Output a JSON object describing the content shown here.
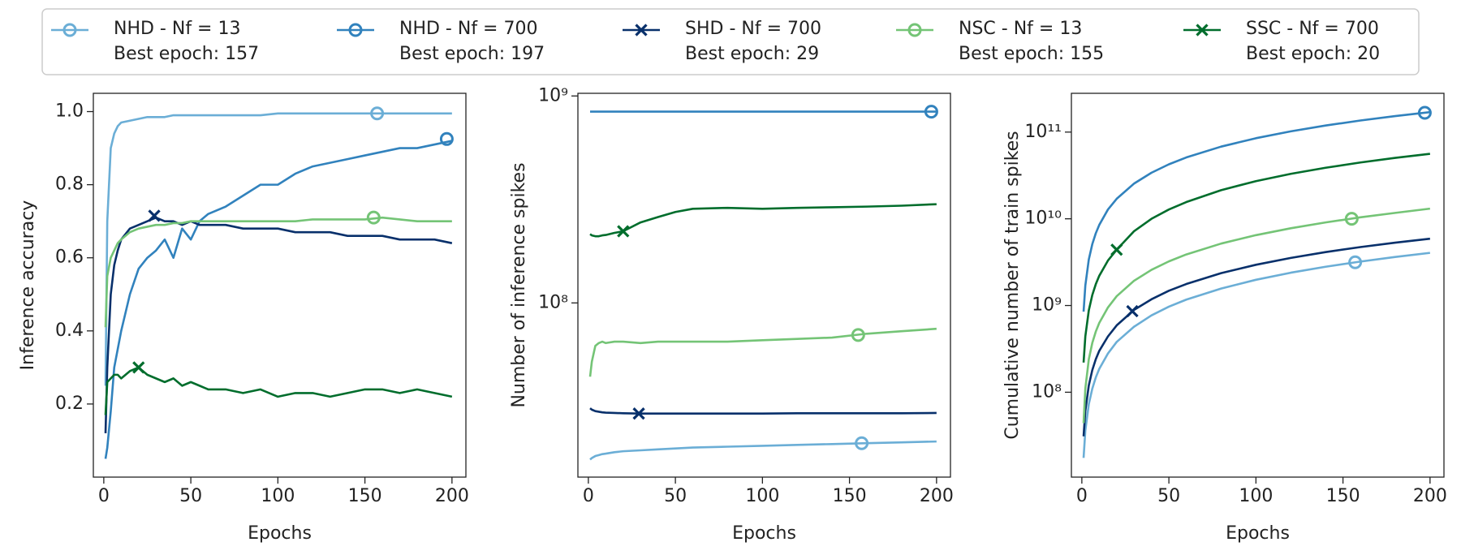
{
  "legend": [
    {
      "name": "NHD - Nf = 13",
      "note": "Best epoch: 157",
      "color": "#6baed6",
      "marker": "o"
    },
    {
      "name": "NHD - Nf = 700",
      "note": "Best epoch: 197",
      "color": "#3182bd",
      "marker": "o"
    },
    {
      "name": "SHD - Nf = 700",
      "note": "Best epoch: 29",
      "color": "#08306b",
      "marker": "x"
    },
    {
      "name": "NSC - Nf = 13",
      "note": "Best epoch: 155",
      "color": "#74c476",
      "marker": "o"
    },
    {
      "name": "SSC - Nf = 700",
      "note": "Best epoch: 20",
      "color": "#006d2c",
      "marker": "x"
    }
  ],
  "chart_data": [
    {
      "type": "line",
      "xlabel": "Epochs",
      "ylabel": "Inference accuracy",
      "log_y": false,
      "xlim": [
        -6,
        208
      ],
      "xticks": [
        0,
        50,
        100,
        150,
        200
      ],
      "ylim": [
        0.0,
        1.05
      ],
      "yticks": [
        0.2,
        0.4,
        0.6,
        0.8,
        {
          "value": 1.0,
          "label": "1.0"
        }
      ],
      "x": [
        1,
        2,
        4,
        6,
        8,
        10,
        15,
        20,
        25,
        30,
        35,
        40,
        45,
        50,
        55,
        60,
        70,
        80,
        90,
        100,
        110,
        120,
        130,
        140,
        150,
        160,
        170,
        180,
        190,
        200
      ],
      "series": [
        {
          "color": "#6baed6",
          "marker": "o",
          "best_epoch": 157,
          "best_value": 0.995,
          "values": [
            0.25,
            0.7,
            0.9,
            0.94,
            0.96,
            0.97,
            0.975,
            0.98,
            0.985,
            0.985,
            0.985,
            0.99,
            0.99,
            0.99,
            0.99,
            0.99,
            0.99,
            0.99,
            0.99,
            0.995,
            0.995,
            0.995,
            0.995,
            0.995,
            0.995,
            0.995,
            0.995,
            0.995,
            0.995,
            0.995
          ]
        },
        {
          "color": "#3182bd",
          "marker": "o",
          "best_epoch": 197,
          "best_value": 0.925,
          "values": [
            0.05,
            0.08,
            0.18,
            0.3,
            0.35,
            0.4,
            0.5,
            0.57,
            0.6,
            0.62,
            0.65,
            0.6,
            0.68,
            0.65,
            0.7,
            0.72,
            0.74,
            0.77,
            0.8,
            0.8,
            0.83,
            0.85,
            0.86,
            0.87,
            0.88,
            0.89,
            0.9,
            0.9,
            0.91,
            0.92
          ]
        },
        {
          "color": "#08306b",
          "marker": "x",
          "best_epoch": 29,
          "best_value": 0.715,
          "values": [
            0.12,
            0.3,
            0.5,
            0.58,
            0.62,
            0.65,
            0.68,
            0.69,
            0.7,
            0.71,
            0.7,
            0.7,
            0.69,
            0.7,
            0.69,
            0.69,
            0.69,
            0.68,
            0.68,
            0.68,
            0.67,
            0.67,
            0.67,
            0.66,
            0.66,
            0.66,
            0.65,
            0.65,
            0.65,
            0.64
          ]
        },
        {
          "color": "#74c476",
          "marker": "o",
          "best_epoch": 155,
          "best_value": 0.71,
          "values": [
            0.41,
            0.55,
            0.6,
            0.62,
            0.64,
            0.65,
            0.67,
            0.68,
            0.685,
            0.69,
            0.69,
            0.695,
            0.695,
            0.7,
            0.7,
            0.7,
            0.7,
            0.7,
            0.7,
            0.7,
            0.7,
            0.705,
            0.705,
            0.705,
            0.705,
            0.71,
            0.705,
            0.7,
            0.7,
            0.7
          ]
        },
        {
          "color": "#006d2c",
          "marker": "x",
          "best_epoch": 20,
          "best_value": 0.3,
          "values": [
            0.17,
            0.26,
            0.27,
            0.28,
            0.28,
            0.27,
            0.29,
            0.3,
            0.28,
            0.27,
            0.26,
            0.27,
            0.25,
            0.26,
            0.25,
            0.24,
            0.24,
            0.23,
            0.24,
            0.22,
            0.23,
            0.23,
            0.22,
            0.23,
            0.24,
            0.24,
            0.23,
            0.24,
            0.23,
            0.22
          ]
        }
      ]
    },
    {
      "type": "line",
      "xlabel": "Epochs",
      "ylabel": "Number of inference spikes",
      "log_y": true,
      "xlim": [
        -6,
        208
      ],
      "xticks": [
        0,
        50,
        100,
        150,
        200
      ],
      "ylim": [
        14400000,
        1030000000
      ],
      "yticks": [
        {
          "value": 100000000,
          "label": "10⁸"
        },
        {
          "value": 1000000000,
          "label": "10⁹"
        }
      ],
      "x": [
        1,
        2,
        4,
        6,
        8,
        10,
        15,
        20,
        30,
        40,
        50,
        60,
        80,
        100,
        120,
        140,
        160,
        180,
        200
      ],
      "series": [
        {
          "color": "#6baed6",
          "marker": "o",
          "best_epoch": 157,
          "best_value": 21000000.0,
          "values": [
            17500000.0,
            17800000.0,
            18200000.0,
            18400000.0,
            18600000.0,
            18700000.0,
            19000000.0,
            19200000.0,
            19400000.0,
            19600000.0,
            19800000.0,
            20000000.0,
            20200000.0,
            20400000.0,
            20600000.0,
            20800000.0,
            21000000.0,
            21200000.0,
            21400000.0
          ]
        },
        {
          "color": "#3182bd",
          "marker": "o",
          "best_epoch": 197,
          "best_value": 840000000.0,
          "values": [
            840000000.0,
            840000000.0,
            840000000.0,
            840000000.0,
            840000000.0,
            840000000.0,
            840000000.0,
            840000000.0,
            840000000.0,
            840000000.0,
            840000000.0,
            840000000.0,
            840000000.0,
            840000000.0,
            840000000.0,
            840000000.0,
            840000000.0,
            840000000.0,
            840000000.0
          ]
        },
        {
          "color": "#08306b",
          "marker": "x",
          "best_epoch": 29,
          "best_value": 29200000.0,
          "values": [
            31000000.0,
            30500000.0,
            30000000.0,
            29800000.0,
            29600000.0,
            29500000.0,
            29400000.0,
            29300000.0,
            29200000.0,
            29200000.0,
            29200000.0,
            29200000.0,
            29200000.0,
            29200000.0,
            29300000.0,
            29300000.0,
            29300000.0,
            29300000.0,
            29400000.0
          ]
        },
        {
          "color": "#74c476",
          "marker": "o",
          "best_epoch": 155,
          "best_value": 70000000.0,
          "values": [
            44000000.0,
            52000000.0,
            62000000.0,
            64000000.0,
            65000000.0,
            64000000.0,
            65000000.0,
            65000000.0,
            64000000.0,
            65000000.0,
            65000000.0,
            65000000.0,
            65000000.0,
            66000000.0,
            67000000.0,
            68000000.0,
            71000000.0,
            73000000.0,
            75000000.0
          ]
        },
        {
          "color": "#006d2c",
          "marker": "x",
          "best_epoch": 20,
          "best_value": 222000000.0,
          "values": [
            215000000.0,
            212000000.0,
            210000000.0,
            210000000.0,
            212000000.0,
            213000000.0,
            218000000.0,
            222000000.0,
            245000000.0,
            260000000.0,
            275000000.0,
            285000000.0,
            288000000.0,
            285000000.0,
            288000000.0,
            290000000.0,
            292000000.0,
            295000000.0,
            300000000.0
          ]
        }
      ]
    },
    {
      "type": "line",
      "xlabel": "Epochs",
      "ylabel": "Cumulative number of train spikes",
      "log_y": true,
      "xlim": [
        -6,
        208
      ],
      "xticks": [
        0,
        50,
        100,
        150,
        200
      ],
      "ylim": [
        10500000,
        280000000000
      ],
      "yticks": [
        {
          "value": 100000000,
          "label": "10⁸"
        },
        {
          "value": 1000000000,
          "label": "10⁹"
        },
        {
          "value": 10000000000,
          "label": "10¹⁰"
        },
        {
          "value": 100000000000,
          "label": "10¹¹"
        }
      ],
      "x": [
        1,
        2,
        4,
        6,
        8,
        10,
        15,
        20,
        30,
        40,
        50,
        60,
        80,
        100,
        120,
        140,
        160,
        180,
        200
      ],
      "series": [
        {
          "color": "#6baed6",
          "marker": "o",
          "best_epoch": 157,
          "best_value": 3150000000.0,
          "values": [
            17500000.0,
            36000000.0,
            73000000.0,
            110000000.0,
            148000000.0,
            186000000.0,
            280000000.0,
            380000000.0,
            570000000.0,
            770000000.0,
            970000000.0,
            1170000000.0,
            1570000000.0,
            1980000000.0,
            2390000000.0,
            2800000000.0,
            3210000000.0,
            3630000000.0,
            4050000000.0
          ]
        },
        {
          "color": "#3182bd",
          "marker": "o",
          "best_epoch": 197,
          "best_value": 167000000000.0,
          "values": [
            850000000.0,
            1700000000.0,
            3400000000.0,
            5100000000.0,
            6800000000.0,
            8500000000.0,
            12800000000.0,
            17000000000.0,
            25500000000.0,
            34000000000.0,
            42500000000.0,
            51000000000.0,
            68000000000.0,
            85000000000.0,
            102000000000.0,
            119000000000.0,
            136000000000.0,
            153000000000.0,
            170000000000.0
          ]
        },
        {
          "color": "#08306b",
          "marker": "x",
          "best_epoch": 29,
          "best_value": 860000000.0,
          "values": [
            31000000.0,
            61000000.0,
            120000000.0,
            180000000.0,
            240000000.0,
            300000000.0,
            440000000.0,
            590000000.0,
            890000000.0,
            1180000000.0,
            1480000000.0,
            1770000000.0,
            2360000000.0,
            2950000000.0,
            3540000000.0,
            4130000000.0,
            4720000000.0,
            5310000000.0,
            5900000000.0
          ]
        },
        {
          "color": "#74c476",
          "marker": "o",
          "best_epoch": 155,
          "best_value": 10000000000.0,
          "values": [
            44000000.0,
            110000000.0,
            240000000.0,
            370000000.0,
            500000000.0,
            630000000.0,
            950000000.0,
            1280000000.0,
            1930000000.0,
            2580000000.0,
            3230000000.0,
            3880000000.0,
            5180000000.0,
            6480000000.0,
            7780000000.0,
            9080000000.0,
            10400000000.0,
            11700000000.0,
            13100000000.0
          ]
        },
        {
          "color": "#006d2c",
          "marker": "x",
          "best_epoch": 20,
          "best_value": 4400000000.0,
          "values": [
            220000000.0,
            440000000.0,
            880000000.0,
            1320000000.0,
            1760000000.0,
            2200000000.0,
            3300000000.0,
            4400000000.0,
            7200000000.0,
            10000000000.0,
            12800000000.0,
            15600000000.0,
            21400000000.0,
            27200000000.0,
            33000000000.0,
            38800000000.0,
            44600000000.0,
            50400000000.0,
            56200000000.0
          ]
        }
      ]
    }
  ]
}
